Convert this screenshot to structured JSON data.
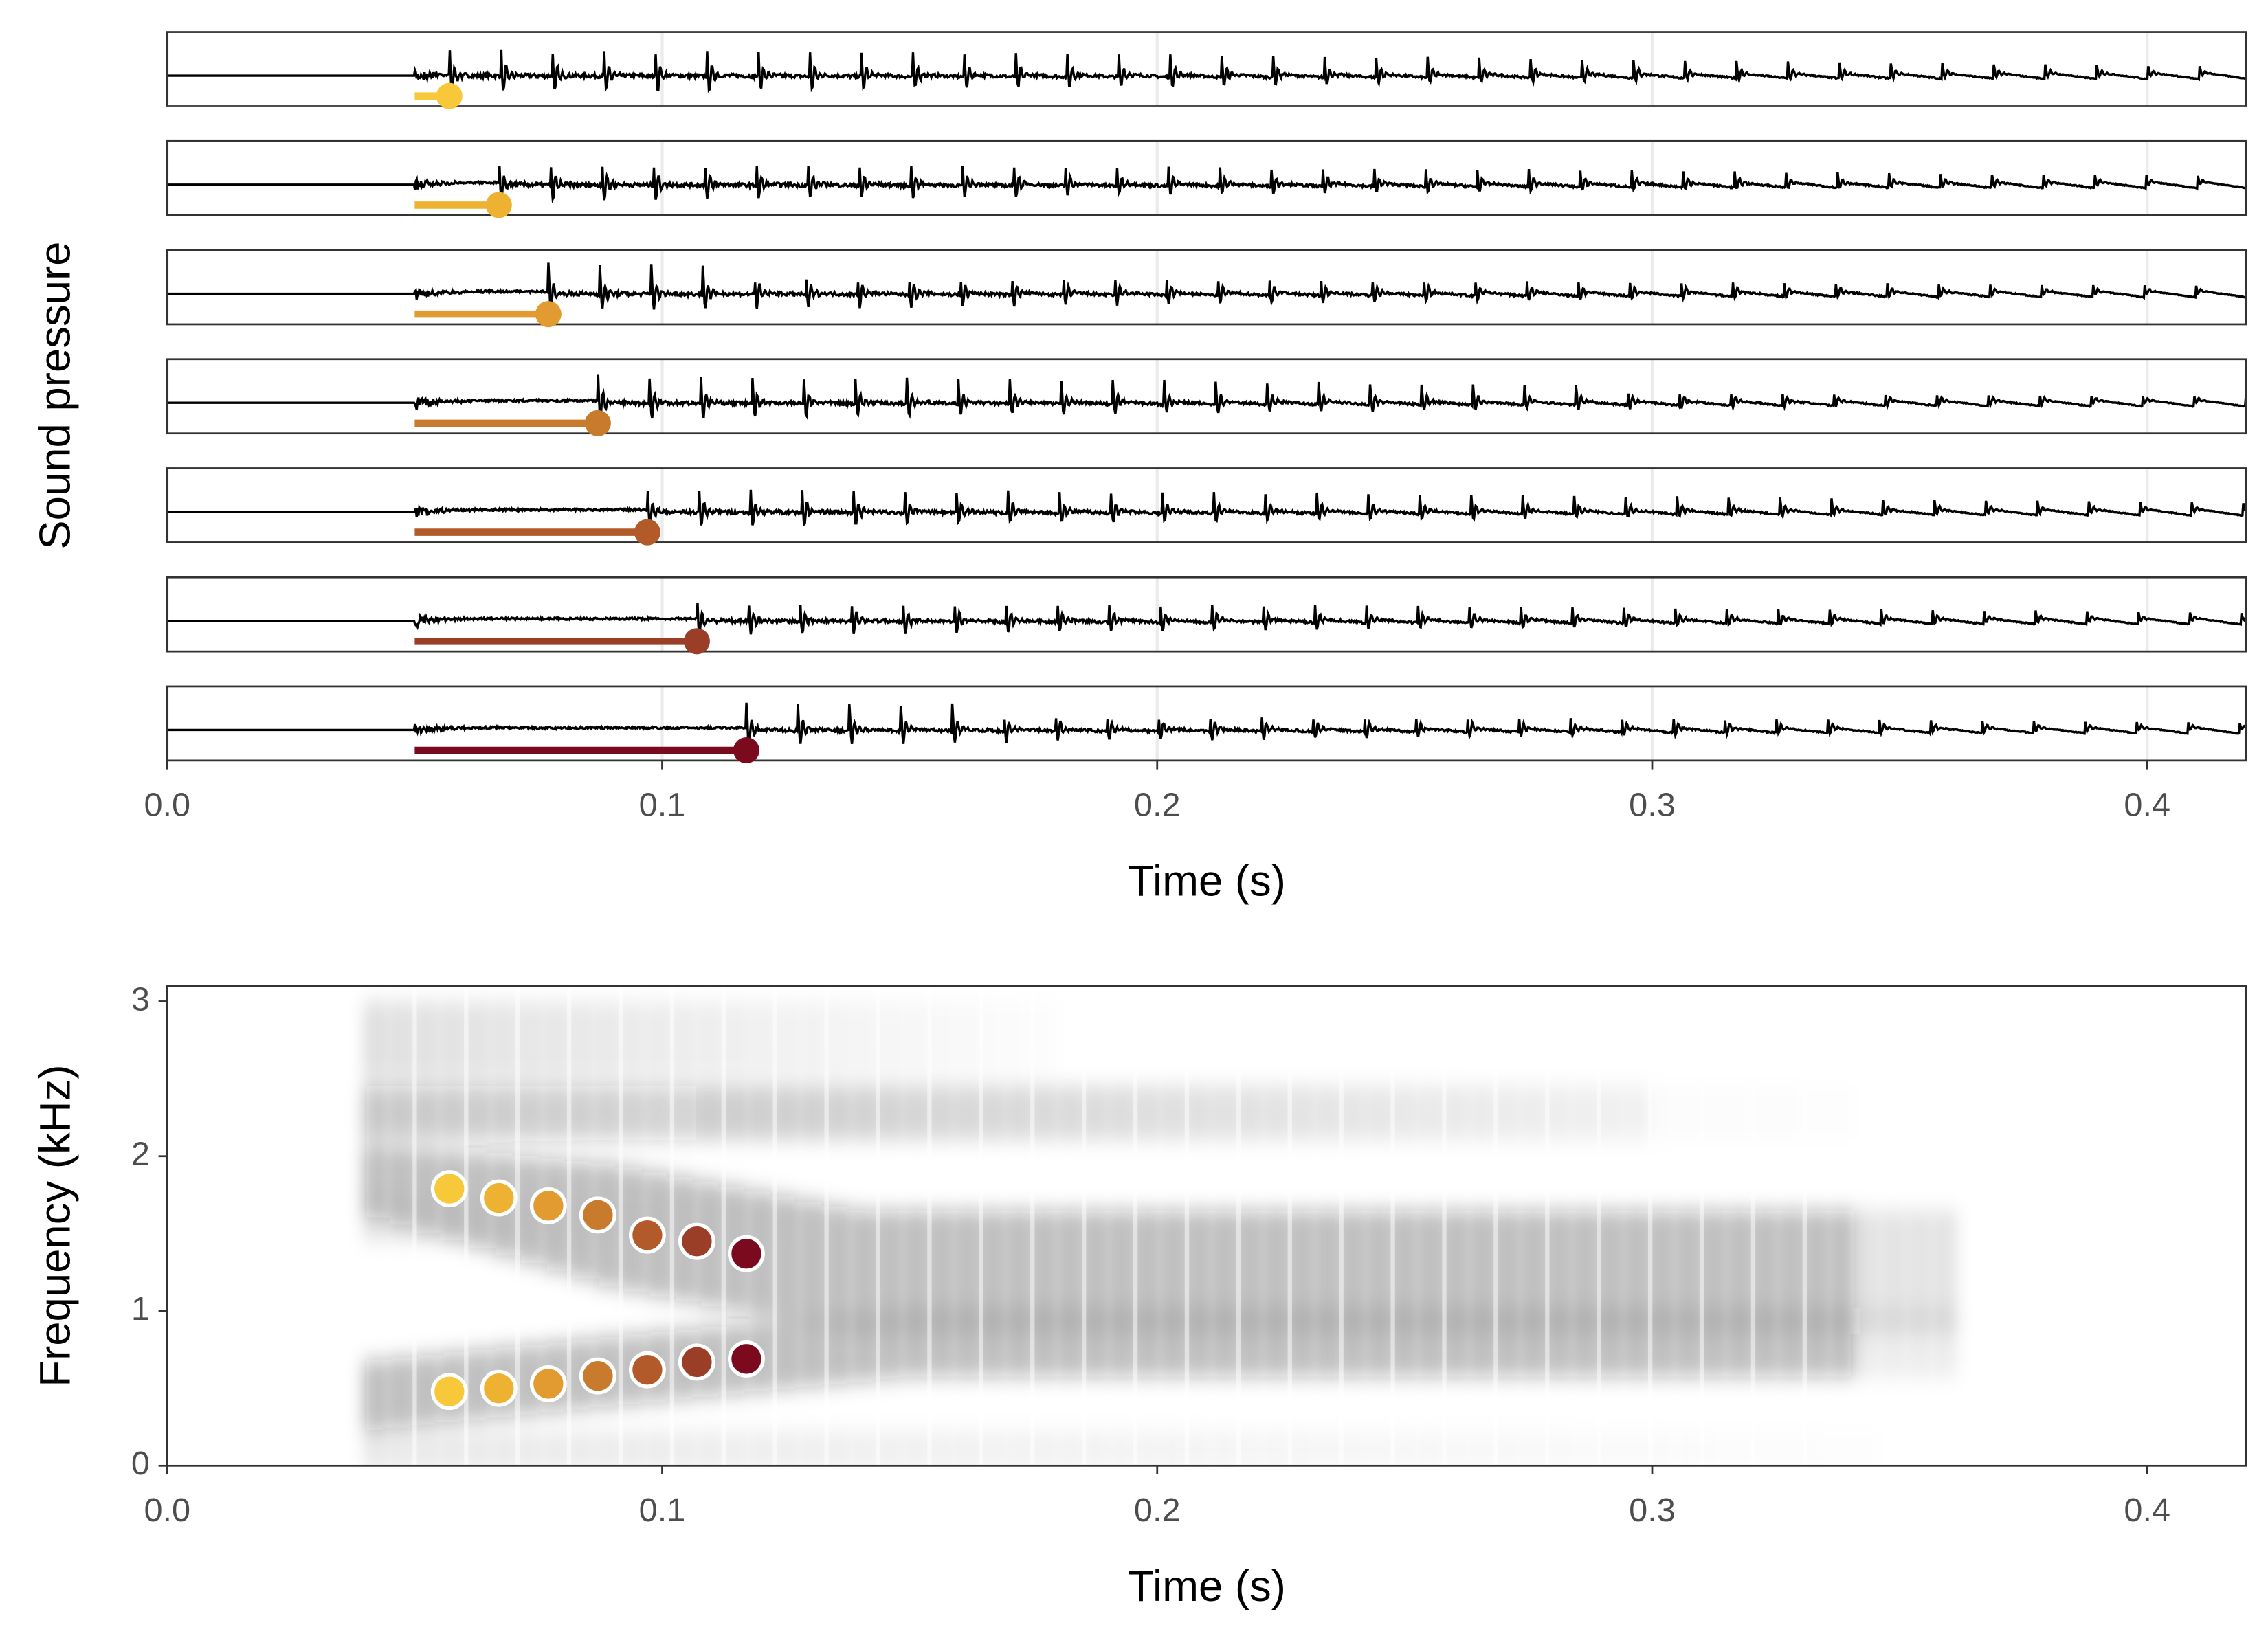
{
  "chart_data": [
    {
      "type": "segment",
      "xlabel": "Time (s)",
      "ylabel": "Sound pressure",
      "start": 0.05,
      "onsets": [
        0.057,
        0.067,
        0.077,
        0.087,
        0.097,
        0.107,
        0.117
      ],
      "colors": [
        "#f6c83a",
        "#eeb232",
        "#e19b30",
        "#c87b2c",
        "#b35a2a",
        "#9b3e27",
        "#7b0a1f"
      ],
      "xlim": [
        0,
        0.42
      ],
      "xticks": [
        {
          "value": 0,
          "label": "0.0"
        },
        0.1,
        0.2,
        0.3,
        0.4
      ],
      "grid": true
    },
    {
      "type": "scatter",
      "xlabel": "Time (s)",
      "ylabel": "Frequency (kHz)",
      "x": [
        0.057,
        0.067,
        0.077,
        0.087,
        0.097,
        0.107,
        0.117
      ],
      "series": [
        {
          "values": [
            1.79,
            1.73,
            1.68,
            1.62,
            1.49,
            1.45,
            1.37
          ]
        },
        {
          "values": [
            0.48,
            0.5,
            0.53,
            0.58,
            0.62,
            0.67,
            0.69
          ]
        }
      ],
      "colors": [
        "#f6c83a",
        "#eeb232",
        "#e19b30",
        "#c87b2c",
        "#b35a2a",
        "#9b3e27",
        "#7b0a1f"
      ],
      "xlim": [
        0,
        0.42
      ],
      "ylim": [
        0,
        3.1
      ],
      "xticks": [
        {
          "value": 0,
          "label": "0.0"
        },
        0.1,
        0.2,
        0.3,
        0.4
      ],
      "yticks": [
        0,
        1,
        2,
        3
      ]
    }
  ]
}
